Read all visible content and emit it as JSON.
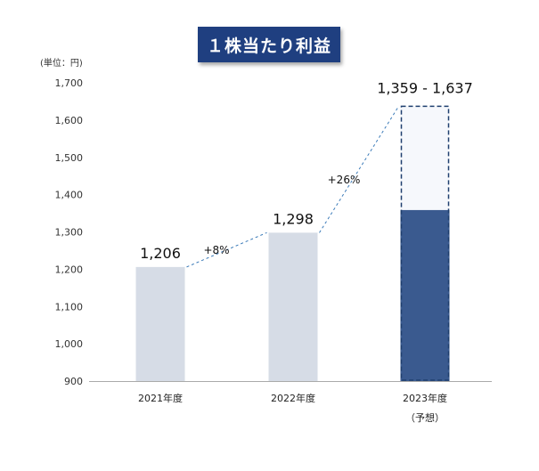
{
  "title": "１株当たり利益",
  "unit_label": "(単位：円)",
  "colors": {
    "title_bg": "#1f3f80",
    "bar_actual": "#d6dce6",
    "bar_forecast": "#3a5a8f",
    "bar_forecast_range": "#f6f8fc",
    "connector": "#3a7ab8",
    "axis": "#aaaaaa"
  },
  "chart_data": {
    "type": "bar",
    "categories": [
      "2021年度",
      "2022年度",
      "2023年度"
    ],
    "category_sub_labels": [
      "",
      "",
      "（予想）"
    ],
    "values": [
      1206,
      1298,
      1359
    ],
    "forecast_range": [
      1359,
      1637
    ],
    "data_labels": [
      "1,206",
      "1,298",
      "1,359 - 1,637"
    ],
    "growth_labels": [
      "+8%",
      "+26%"
    ],
    "ylim": [
      900,
      1700
    ],
    "yticks": [
      900,
      1000,
      1100,
      1200,
      1300,
      1400,
      1500,
      1600,
      1700
    ],
    "ytick_labels": [
      "900",
      "1,000",
      "1,100",
      "1,200",
      "1,300",
      "1,400",
      "1,500",
      "1,600",
      "1,700"
    ],
    "grid": false
  }
}
